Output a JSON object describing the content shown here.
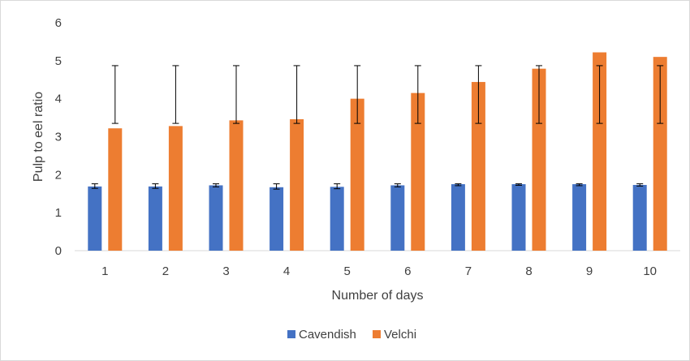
{
  "chart_data": {
    "type": "bar",
    "title": "",
    "xlabel": "Number of days",
    "ylabel": "Pulp to eel ratio",
    "categories": [
      "1",
      "2",
      "3",
      "4",
      "5",
      "6",
      "7",
      "8",
      "9",
      "10"
    ],
    "ylim": [
      0,
      6
    ],
    "yticks": [
      "0",
      "1",
      "2",
      "3",
      "4",
      "5",
      "6"
    ],
    "grid": false,
    "legend_position": "bottom",
    "series": [
      {
        "name": "Cavendish",
        "color": "#4472c4",
        "values": [
          1.69,
          1.69,
          1.72,
          1.67,
          1.68,
          1.72,
          1.75,
          1.75,
          1.75,
          1.73
        ],
        "error_low": [
          1.64,
          1.64,
          1.68,
          1.62,
          1.63,
          1.68,
          1.71,
          1.72,
          1.71,
          1.7
        ],
        "error_high": [
          1.76,
          1.76,
          1.76,
          1.76,
          1.76,
          1.76,
          1.76,
          1.76,
          1.76,
          1.76
        ]
      },
      {
        "name": "Velchi",
        "color": "#ed7d31",
        "values": [
          3.22,
          3.28,
          3.43,
          3.46,
          4.0,
          4.15,
          4.44,
          4.79,
          5.22,
          5.1
        ],
        "error_low": [
          3.35,
          3.35,
          3.35,
          3.35,
          3.35,
          3.35,
          3.35,
          3.35,
          3.35,
          3.35
        ],
        "error_high": [
          4.87,
          4.87,
          4.87,
          4.87,
          4.87,
          4.87,
          4.87,
          4.87,
          4.87,
          4.87
        ]
      }
    ]
  }
}
